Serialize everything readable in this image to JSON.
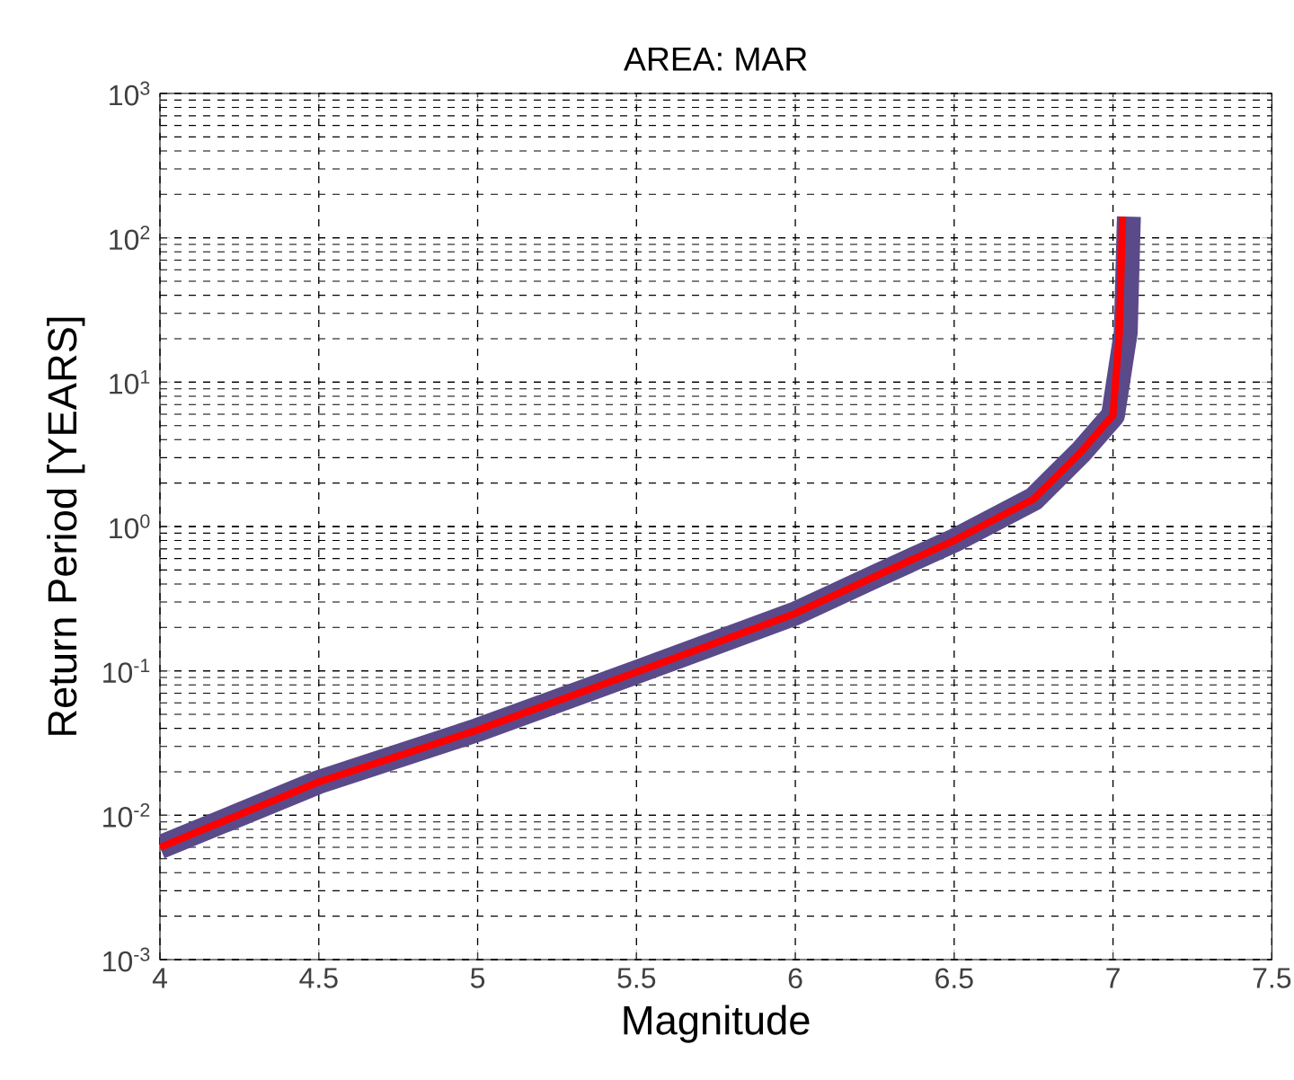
{
  "chart_data": {
    "type": "line",
    "title": "AREA: MAR",
    "xlabel": "Magnitude",
    "ylabel": "Return Period [YEARS]",
    "log": "y",
    "grid": true,
    "line_style": "solid",
    "xlim": [
      4,
      7.5
    ],
    "ylim": [
      0.001,
      1000
    ],
    "xticks": [
      4,
      4.5,
      5,
      5.5,
      6,
      6.5,
      7,
      7.5
    ],
    "yticks": [
      {
        "value": 0.001,
        "label": "10$^{-3}$"
      },
      {
        "value": 0.01,
        "label": "10$^{-2}$"
      },
      {
        "value": 0.1,
        "label": "10$^{-1}$"
      },
      {
        "value": 1,
        "label": "10$^{0}$"
      },
      {
        "value": 10,
        "label": "10$^{1}$"
      },
      {
        "value": 100,
        "label": "10$^{2}$"
      },
      {
        "value": 1000,
        "label": "10$^{3}$"
      }
    ],
    "series": [
      {
        "color": "#5b4a8a",
        "x": [
          4,
          4.5,
          5,
          5.5,
          6,
          6.25,
          6.5,
          6.75,
          6.9,
          7.0,
          7.04,
          7.05
        ],
        "values": [
          0.006,
          0.017,
          0.039,
          0.098,
          0.25,
          0.45,
          0.8,
          1.55,
          3.3,
          5.9,
          22,
          140
        ]
      },
      {
        "color": "#ff0000",
        "x": [
          4,
          4.5,
          5,
          5.5,
          6,
          6.25,
          6.5,
          6.75,
          6.9,
          7.0,
          7.02,
          7.03
        ],
        "values": [
          0.006,
          0.017,
          0.039,
          0.098,
          0.25,
          0.45,
          0.8,
          1.55,
          3.3,
          5.9,
          22,
          140
        ]
      }
    ]
  }
}
